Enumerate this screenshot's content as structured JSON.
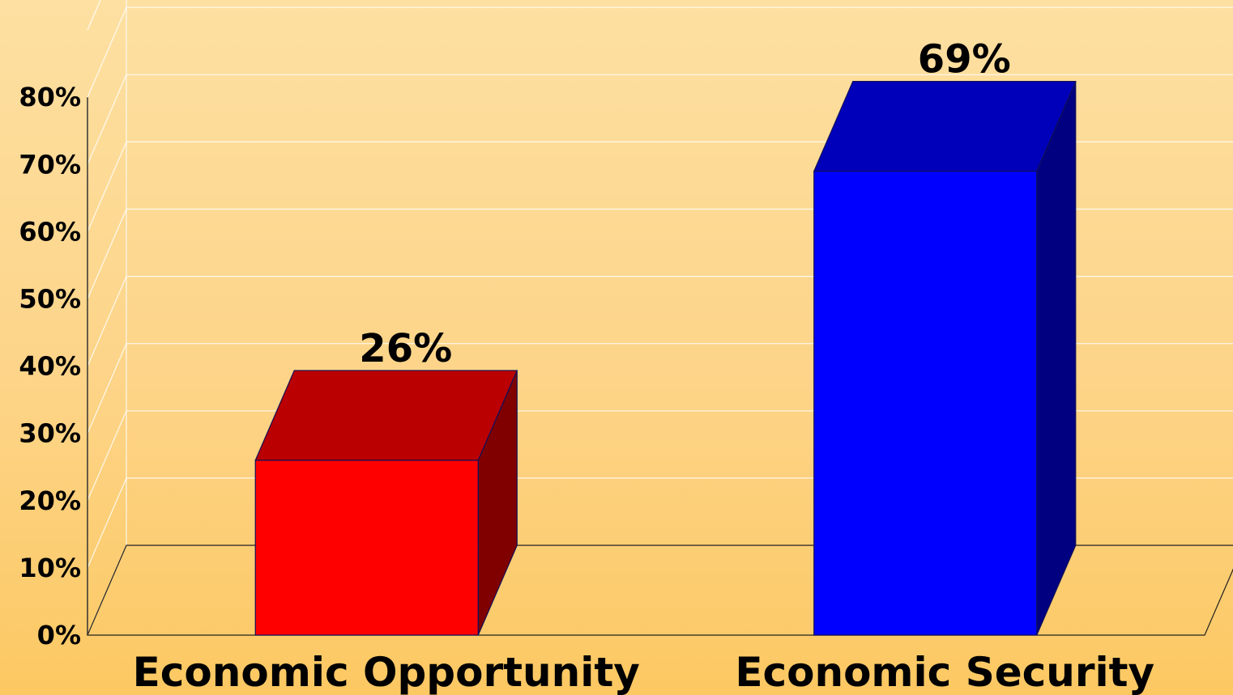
{
  "chart_data": {
    "type": "bar",
    "style": "3d",
    "categories": [
      "Economic Opportunity",
      "Economic Security"
    ],
    "values": [
      26,
      69
    ],
    "data_labels": [
      "26%",
      "69%"
    ],
    "colors": [
      "#ff0000",
      "#0000ff"
    ],
    "ylim": [
      0,
      80
    ],
    "y_ticks": [
      0,
      10,
      20,
      30,
      40,
      50,
      60,
      70,
      80
    ],
    "y_tick_labels": [
      "0%",
      "10%",
      "20%",
      "30%",
      "40%",
      "50%",
      "60%",
      "70%",
      "80%"
    ],
    "grid": true,
    "legend": "none",
    "title": "",
    "xlabel": "",
    "ylabel": ""
  }
}
